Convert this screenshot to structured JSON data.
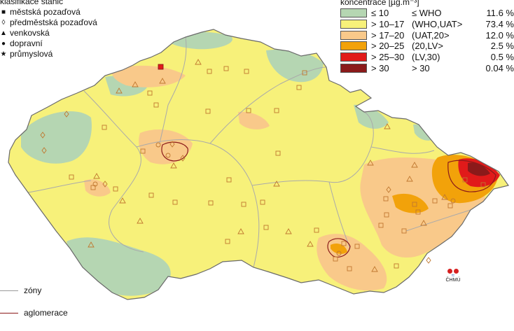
{
  "station_legend": {
    "title": "klasifikace stanic",
    "items": [
      {
        "symbol": "■",
        "label": "městská pozaďová"
      },
      {
        "symbol": "◊",
        "label": "předměstská pozaďová"
      },
      {
        "symbol": "▲",
        "label": "venkovská"
      },
      {
        "symbol": "●",
        "label": "dopravní"
      },
      {
        "symbol": "★",
        "label": "průmyslová"
      }
    ]
  },
  "concentration_legend": {
    "title": "koncentrace [µg.m⁻³]",
    "classes": [
      {
        "range": "≤ 10",
        "class": "≤ WHO",
        "percent": "11.6 %",
        "color": "#b5d6b2"
      },
      {
        "range": "> 10–17",
        "class": "(WHO,UAT>",
        "percent": "73.4 %",
        "color": "#f7f17a"
      },
      {
        "range": "> 17–20",
        "class": "(UAT,20>",
        "percent": "12.0 %",
        "color": "#f9c98a"
      },
      {
        "range": "> 20–25",
        "class": "(20,LV>",
        "percent": "2.5 %",
        "color": "#f2a20a"
      },
      {
        "range": "> 25–30",
        "class": "(LV,30)",
        "percent": "0.5 %",
        "color": "#e11a1a"
      },
      {
        "range": "> 30",
        "class": "> 30",
        "percent": "0.04 %",
        "color": "#8b1a1a"
      }
    ]
  },
  "line_legend": [
    {
      "label": "zóny",
      "color": "#9a9a9a"
    },
    {
      "label": "aglomerace",
      "color": "#8b1a1a"
    }
  ],
  "logo": {
    "text": "ČHMÚ"
  },
  "colors": {
    "outline": "#6a6a6a",
    "zone_line": "#aaaaaa",
    "agglomeration": "#8b1a1a",
    "station": "#c07830"
  }
}
